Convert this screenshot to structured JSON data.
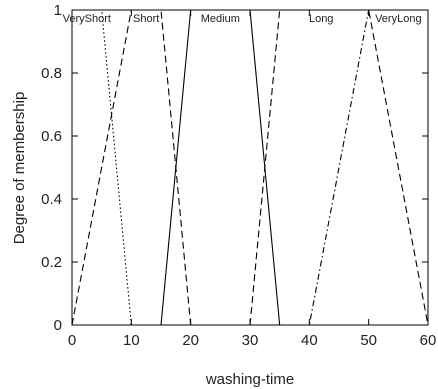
{
  "chart_data": {
    "type": "line",
    "xlabel": "washing-time",
    "ylabel": "Degree of membership",
    "xlim": [
      0,
      60
    ],
    "ylim": [
      0,
      1
    ],
    "x_ticks": [
      0,
      10,
      20,
      30,
      40,
      50,
      60
    ],
    "y_ticks": [
      0,
      0.2,
      0.4,
      0.6,
      0.8,
      1
    ],
    "y_tick_labels": [
      "0",
      "0.2",
      "0.4",
      "0.6",
      "0.8",
      "1"
    ],
    "grid": false,
    "series": [
      {
        "name": "VeryShort",
        "style": "dotted",
        "points": [
          [
            0,
            1
          ],
          [
            5,
            1
          ],
          [
            10,
            0
          ],
          [
            60,
            0
          ]
        ]
      },
      {
        "name": "Short",
        "style": "dashed",
        "points": [
          [
            0,
            0
          ],
          [
            10,
            1
          ],
          [
            15,
            1
          ],
          [
            20,
            0
          ]
        ]
      },
      {
        "name": "Medium",
        "style": "solid",
        "points": [
          [
            15,
            0
          ],
          [
            20,
            1
          ],
          [
            30,
            1
          ],
          [
            35,
            0
          ]
        ]
      },
      {
        "name": "Long",
        "style": "dashed",
        "points": [
          [
            30,
            0
          ],
          [
            35,
            1
          ],
          [
            50,
            1
          ],
          [
            60,
            0
          ]
        ]
      },
      {
        "name": "VeryLong",
        "style": "dashdot",
        "points": [
          [
            0,
            0
          ],
          [
            40,
            0
          ],
          [
            50,
            1
          ],
          [
            60,
            1
          ]
        ]
      }
    ],
    "series_labels": [
      {
        "text": "VeryShort",
        "x": 2.5
      },
      {
        "text": "Short",
        "x": 12.5
      },
      {
        "text": "Medium",
        "x": 25
      },
      {
        "text": "Long",
        "x": 42
      },
      {
        "text": "VeryLong",
        "x": 55
      }
    ]
  }
}
